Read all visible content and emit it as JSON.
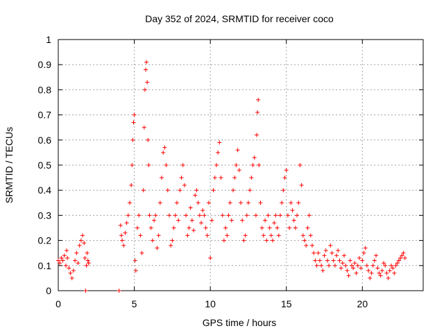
{
  "chart_data": {
    "type": "scatter",
    "title": "Day 352 of 2024, SRMTID for receiver coco",
    "xlabel": "GPS time / hours",
    "ylabel": "SRMTID / TECUs",
    "xlim": [
      0,
      24
    ],
    "ylim": [
      0,
      1
    ],
    "xticks": [
      0,
      5,
      10,
      15,
      20
    ],
    "yticks": [
      0,
      0.1,
      0.2,
      0.3,
      0.4,
      0.5,
      0.6,
      0.7,
      0.8,
      0.9,
      1
    ],
    "grid": true,
    "marker": "+",
    "color": "#ff0000",
    "series": [
      {
        "name": "SRMTID",
        "points": [
          [
            0.0,
            0.12
          ],
          [
            0.1,
            0.11
          ],
          [
            0.2,
            0.13
          ],
          [
            0.3,
            0.12
          ],
          [
            0.4,
            0.14
          ],
          [
            0.5,
            0.1
          ],
          [
            0.55,
            0.16
          ],
          [
            0.6,
            0.13
          ],
          [
            0.7,
            0.09
          ],
          [
            0.8,
            0.07
          ],
          [
            0.9,
            0.05
          ],
          [
            1.0,
            0.08
          ],
          [
            1.1,
            0.12
          ],
          [
            1.2,
            0.15
          ],
          [
            1.3,
            0.11
          ],
          [
            1.4,
            0.18
          ],
          [
            1.5,
            0.2
          ],
          [
            1.6,
            0.22
          ],
          [
            1.7,
            0.19
          ],
          [
            1.75,
            0.13
          ],
          [
            1.8,
            0.0
          ],
          [
            1.85,
            0.1
          ],
          [
            1.9,
            0.15
          ],
          [
            1.95,
            0.12
          ],
          [
            2.0,
            0.11
          ],
          [
            4.0,
            0.0
          ],
          [
            4.1,
            0.26
          ],
          [
            4.15,
            0.22
          ],
          [
            4.2,
            0.2
          ],
          [
            4.3,
            0.18
          ],
          [
            4.4,
            0.23
          ],
          [
            4.5,
            0.27
          ],
          [
            4.6,
            0.3
          ],
          [
            4.7,
            0.35
          ],
          [
            4.8,
            0.42
          ],
          [
            4.85,
            0.5
          ],
          [
            4.9,
            0.6
          ],
          [
            4.95,
            0.67
          ],
          [
            5.0,
            0.7
          ],
          [
            5.05,
            0.12
          ],
          [
            5.1,
            0.08
          ],
          [
            5.2,
            0.25
          ],
          [
            5.3,
            0.3
          ],
          [
            5.4,
            0.22
          ],
          [
            5.5,
            0.15
          ],
          [
            5.6,
            0.4
          ],
          [
            5.65,
            0.65
          ],
          [
            5.7,
            0.8
          ],
          [
            5.75,
            0.88
          ],
          [
            5.8,
            0.91
          ],
          [
            5.85,
            0.83
          ],
          [
            5.9,
            0.6
          ],
          [
            5.95,
            0.5
          ],
          [
            6.0,
            0.3
          ],
          [
            6.1,
            0.25
          ],
          [
            6.2,
            0.2
          ],
          [
            6.3,
            0.28
          ],
          [
            6.4,
            0.3
          ],
          [
            6.5,
            0.17
          ],
          [
            6.6,
            0.22
          ],
          [
            6.7,
            0.35
          ],
          [
            6.8,
            0.45
          ],
          [
            6.9,
            0.55
          ],
          [
            7.0,
            0.57
          ],
          [
            7.1,
            0.5
          ],
          [
            7.2,
            0.4
          ],
          [
            7.3,
            0.3
          ],
          [
            7.4,
            0.18
          ],
          [
            7.5,
            0.2
          ],
          [
            7.6,
            0.25
          ],
          [
            7.7,
            0.3
          ],
          [
            7.8,
            0.35
          ],
          [
            7.9,
            0.28
          ],
          [
            8.0,
            0.4
          ],
          [
            8.1,
            0.45
          ],
          [
            8.2,
            0.5
          ],
          [
            8.3,
            0.42
          ],
          [
            8.4,
            0.3
          ],
          [
            8.5,
            0.22
          ],
          [
            8.6,
            0.25
          ],
          [
            8.7,
            0.33
          ],
          [
            8.8,
            0.28
          ],
          [
            8.9,
            0.24
          ],
          [
            9.0,
            0.38
          ],
          [
            9.1,
            0.4
          ],
          [
            9.2,
            0.35
          ],
          [
            9.3,
            0.3
          ],
          [
            9.4,
            0.27
          ],
          [
            9.5,
            0.32
          ],
          [
            9.6,
            0.3
          ],
          [
            9.7,
            0.25
          ],
          [
            9.8,
            0.22
          ],
          [
            9.9,
            0.35
          ],
          [
            10.0,
            0.13
          ],
          [
            10.1,
            0.28
          ],
          [
            10.2,
            0.4
          ],
          [
            10.3,
            0.45
          ],
          [
            10.4,
            0.5
          ],
          [
            10.5,
            0.55
          ],
          [
            10.6,
            0.59
          ],
          [
            10.7,
            0.45
          ],
          [
            10.8,
            0.3
          ],
          [
            10.9,
            0.2
          ],
          [
            11.0,
            0.25
          ],
          [
            11.1,
            0.22
          ],
          [
            11.2,
            0.3
          ],
          [
            11.3,
            0.35
          ],
          [
            11.4,
            0.28
          ],
          [
            11.5,
            0.4
          ],
          [
            11.6,
            0.45
          ],
          [
            11.7,
            0.5
          ],
          [
            11.8,
            0.56
          ],
          [
            11.9,
            0.48
          ],
          [
            12.0,
            0.35
          ],
          [
            12.1,
            0.28
          ],
          [
            12.2,
            0.2
          ],
          [
            12.3,
            0.22
          ],
          [
            12.4,
            0.3
          ],
          [
            12.5,
            0.35
          ],
          [
            12.6,
            0.4
          ],
          [
            12.7,
            0.45
          ],
          [
            12.8,
            0.5
          ],
          [
            12.9,
            0.53
          ],
          [
            13.0,
            0.3
          ],
          [
            13.05,
            0.62
          ],
          [
            13.1,
            0.71
          ],
          [
            13.15,
            0.76
          ],
          [
            13.2,
            0.5
          ],
          [
            13.3,
            0.35
          ],
          [
            13.4,
            0.25
          ],
          [
            13.5,
            0.22
          ],
          [
            13.6,
            0.28
          ],
          [
            13.7,
            0.2
          ],
          [
            13.8,
            0.3
          ],
          [
            13.9,
            0.25
          ],
          [
            14.0,
            0.22
          ],
          [
            14.1,
            0.2
          ],
          [
            14.2,
            0.27
          ],
          [
            14.3,
            0.3
          ],
          [
            14.4,
            0.25
          ],
          [
            14.5,
            0.22
          ],
          [
            14.6,
            0.3
          ],
          [
            14.7,
            0.35
          ],
          [
            14.8,
            0.4
          ],
          [
            14.9,
            0.45
          ],
          [
            15.0,
            0.48
          ],
          [
            15.1,
            0.3
          ],
          [
            15.2,
            0.25
          ],
          [
            15.3,
            0.35
          ],
          [
            15.4,
            0.32
          ],
          [
            15.5,
            0.28
          ],
          [
            15.6,
            0.25
          ],
          [
            15.7,
            0.3
          ],
          [
            15.8,
            0.35
          ],
          [
            15.9,
            0.5
          ],
          [
            16.0,
            0.42
          ],
          [
            16.1,
            0.22
          ],
          [
            16.2,
            0.2
          ],
          [
            16.3,
            0.18
          ],
          [
            16.4,
            0.25
          ],
          [
            16.5,
            0.3
          ],
          [
            16.6,
            0.22
          ],
          [
            16.7,
            0.18
          ],
          [
            16.8,
            0.15
          ],
          [
            16.9,
            0.12
          ],
          [
            17.0,
            0.1
          ],
          [
            17.1,
            0.15
          ],
          [
            17.2,
            0.12
          ],
          [
            17.3,
            0.1
          ],
          [
            17.4,
            0.08
          ],
          [
            17.5,
            0.14
          ],
          [
            17.6,
            0.16
          ],
          [
            17.7,
            0.12
          ],
          [
            17.8,
            0.1
          ],
          [
            17.9,
            0.18
          ],
          [
            18.0,
            0.15
          ],
          [
            18.1,
            0.12
          ],
          [
            18.2,
            0.1
          ],
          [
            18.3,
            0.14
          ],
          [
            18.4,
            0.16
          ],
          [
            18.5,
            0.12
          ],
          [
            18.6,
            0.09
          ],
          [
            18.7,
            0.11
          ],
          [
            18.8,
            0.14
          ],
          [
            18.9,
            0.1
          ],
          [
            19.0,
            0.08
          ],
          [
            19.1,
            0.06
          ],
          [
            19.2,
            0.12
          ],
          [
            19.3,
            0.1
          ],
          [
            19.4,
            0.09
          ],
          [
            19.5,
            0.11
          ],
          [
            19.6,
            0.07
          ],
          [
            19.7,
            0.1
          ],
          [
            19.8,
            0.13
          ],
          [
            19.9,
            0.09
          ],
          [
            20.0,
            0.12
          ],
          [
            20.1,
            0.15
          ],
          [
            20.2,
            0.17
          ],
          [
            20.3,
            0.1
          ],
          [
            20.4,
            0.08
          ],
          [
            20.5,
            0.05
          ],
          [
            20.6,
            0.07
          ],
          [
            20.7,
            0.1
          ],
          [
            20.8,
            0.12
          ],
          [
            20.9,
            0.14
          ],
          [
            21.0,
            0.09
          ],
          [
            21.1,
            0.07
          ],
          [
            21.2,
            0.06
          ],
          [
            21.3,
            0.08
          ],
          [
            21.4,
            0.11
          ],
          [
            21.5,
            0.1
          ],
          [
            21.6,
            0.07
          ],
          [
            21.7,
            0.05
          ],
          [
            21.8,
            0.08
          ],
          [
            21.9,
            0.1
          ],
          [
            22.0,
            0.09
          ],
          [
            22.1,
            0.07
          ],
          [
            22.2,
            0.1
          ],
          [
            22.3,
            0.11
          ],
          [
            22.4,
            0.12
          ],
          [
            22.5,
            0.13
          ],
          [
            22.6,
            0.14
          ],
          [
            22.7,
            0.15
          ],
          [
            22.8,
            0.13
          ]
        ]
      }
    ]
  }
}
